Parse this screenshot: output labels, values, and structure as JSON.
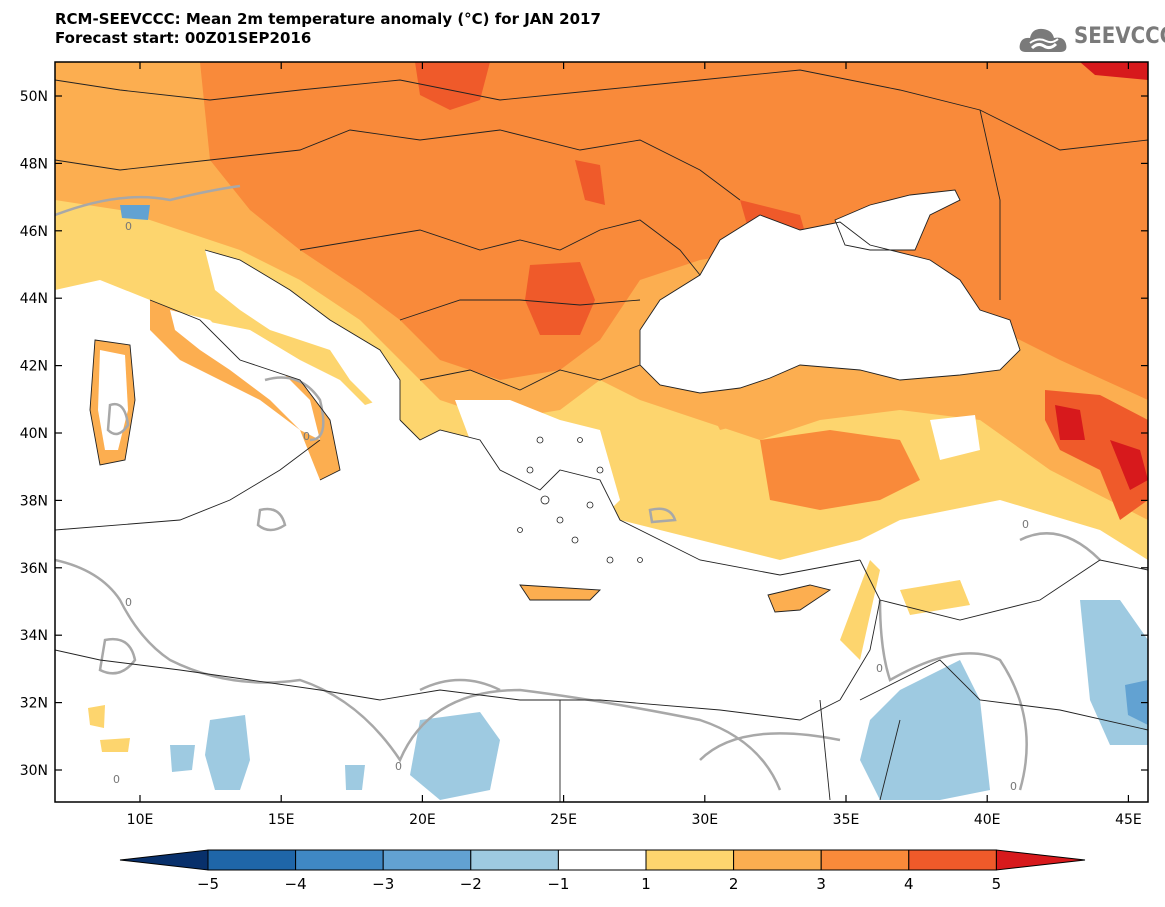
{
  "header": {
    "title_line1": "RCM-SEEVCCC: Mean 2m temperature anomaly (°C) for JAN 2017",
    "title_line2": "Forecast start: 00Z01SEP2016"
  },
  "logo": {
    "text": "SEEVCCC",
    "icon": "cloud-logo-icon"
  },
  "axes": {
    "lat_labels": [
      "50N",
      "48N",
      "46N",
      "44N",
      "42N",
      "40N",
      "38N",
      "36N",
      "34N",
      "32N",
      "30N"
    ],
    "lon_labels": [
      "10E",
      "15E",
      "20E",
      "25E",
      "30E",
      "35E",
      "40E",
      "45E"
    ]
  },
  "colorbar": {
    "labels": [
      "-5",
      "-4",
      "-3",
      "-2",
      "-1",
      "1",
      "2",
      "3",
      "4",
      "5"
    ],
    "colors": [
      "#08306b",
      "#1f66a8",
      "#3f88c4",
      "#62a2d2",
      "#9ecae1",
      "#ffffff",
      "#fdd56e",
      "#fcae50",
      "#f98a3a",
      "#ef5a2a",
      "#d7191c"
    ]
  },
  "contour_label": "0"
}
